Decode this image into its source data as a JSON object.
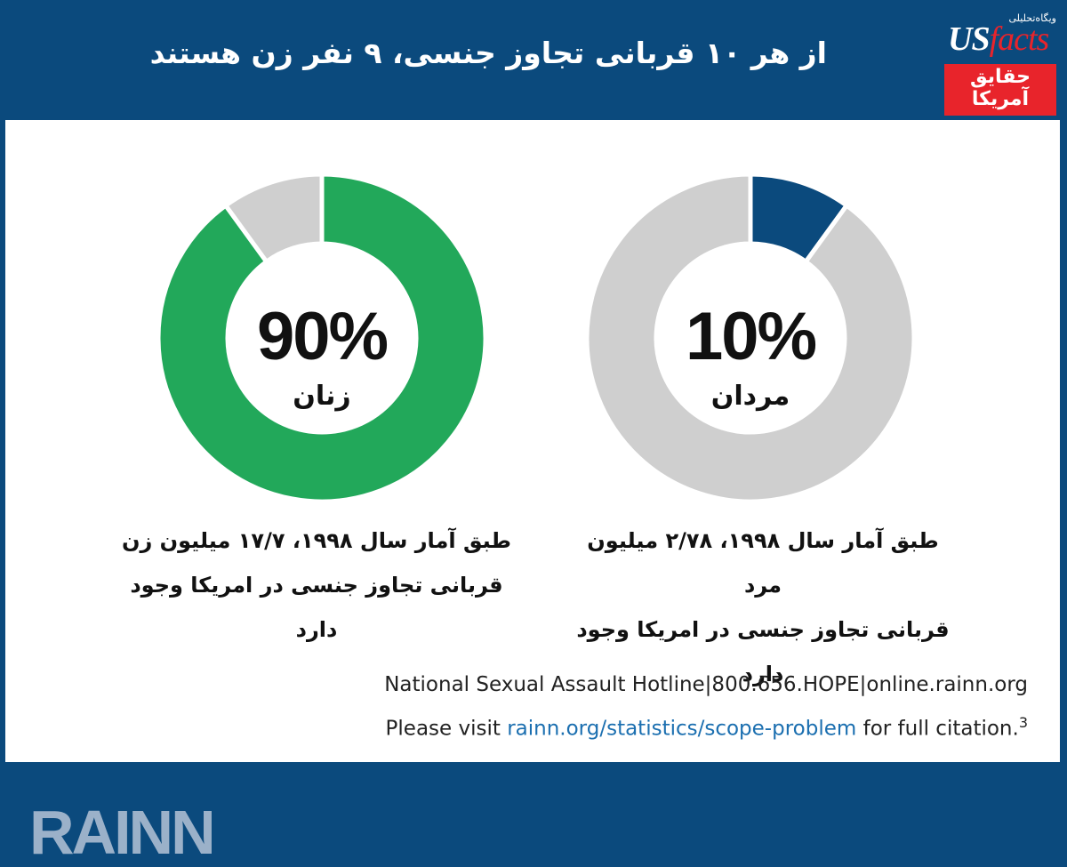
{
  "title": "از هر ۱۰ قربانی تجاوز جنسی، ۹ نفر زن هستند",
  "logo": {
    "tagline": "ویگاه‌تحلیلی",
    "us": "US",
    "facts": "facts",
    "line1": "حقایق",
    "line2": "آمریکا"
  },
  "chart_data": [
    {
      "type": "pie",
      "title": "",
      "slices": [
        {
          "label": "زنان",
          "value": 90,
          "color": "#22a85a"
        },
        {
          "label": "",
          "value": 10,
          "color": "#cfcfcf"
        }
      ],
      "center_value": "90%",
      "center_label": "زنان",
      "caption_line1": "طبق آمار سال ۱۹۹۸، ۱۷/۷ میلیون زن",
      "caption_line2": "قربانی تجاوز جنسی در امریکا وجود دارد"
    },
    {
      "type": "pie",
      "title": "",
      "slices": [
        {
          "label": "مردان",
          "value": 10,
          "color": "#0b4a7d"
        },
        {
          "label": "",
          "value": 90,
          "color": "#cfcfcf"
        }
      ],
      "center_value": "10%",
      "center_label": "مردان",
      "caption_line1": "طبق آمار سال ۱۹۹۸،  ۲/۷۸ میلیون مرد",
      "caption_line2": "قربانی تجاوز جنسی در امریکا وجود دارد"
    }
  ],
  "footer": {
    "brand": "RAINN",
    "hotline": "National Sexual Assault Hotline|800.656.HOPE|online.rainn.org",
    "visit_prefix": "Please visit ",
    "visit_link": "rainn.org/statistics/scope-problem",
    "visit_suffix": " for full citation.",
    "footnote": "3"
  }
}
